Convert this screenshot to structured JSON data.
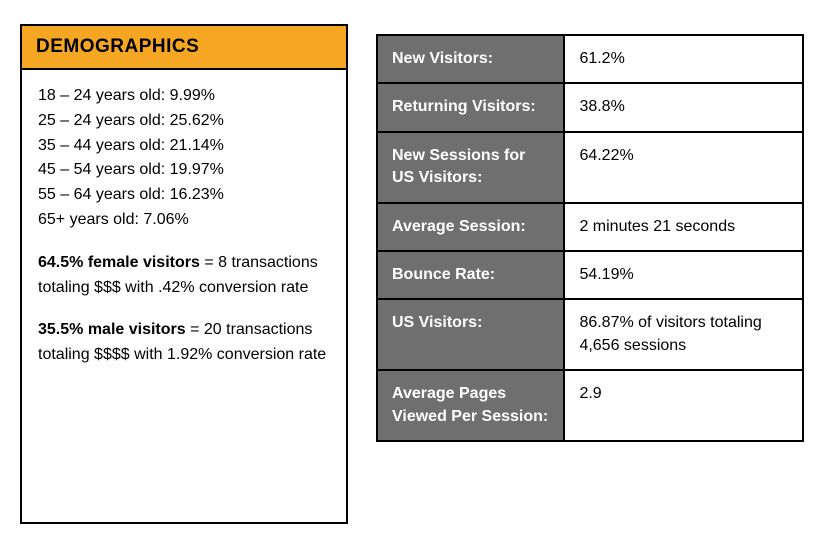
{
  "colors": {
    "header_bg": "#f5a623",
    "label_bg": "#6f6f6f",
    "label_text": "#ffffff",
    "border": "#000000",
    "body_text": "#000000",
    "page_bg": "#ffffff"
  },
  "typography": {
    "font_family": "Arial",
    "body_fontsize_pt": 12,
    "header_fontsize_pt": 14,
    "line_height": 1.55
  },
  "demographics": {
    "title": "DEMOGRAPHICS",
    "ages": [
      "18 – 24 years old: 9.99%",
      "25 – 24 years old: 25.62%",
      "35 – 44 years old: 21.14%",
      "45 – 54 years old: 19.97%",
      "55 – 64 years old: 16.23%",
      "65+ years old: 7.06%"
    ],
    "female": {
      "lead": "64.5% female visitors",
      "rest": " = 8 transactions totaling $$$ with .42% conversion rate"
    },
    "male": {
      "lead": "35.5% male visitors",
      "rest": " = 20 transactions totaling $$$$ with 1.92% conversion rate"
    }
  },
  "metrics": {
    "rows": [
      {
        "label": "New Visitors:",
        "value": "61.2%"
      },
      {
        "label": "Returning Visitors:",
        "value": "38.8%"
      },
      {
        "label": "New Sessions for US Visitors:",
        "value": "64.22%"
      },
      {
        "label": "Average Session:",
        "value": "2 minutes 21 seconds"
      },
      {
        "label": "Bounce Rate:",
        "value": "54.19%"
      },
      {
        "label": "US Visitors:",
        "value": " 86.87% of visitors totaling 4,656 sessions"
      },
      {
        "label": "Average Pages Viewed Per Session:",
        "value": "2.9"
      }
    ]
  }
}
